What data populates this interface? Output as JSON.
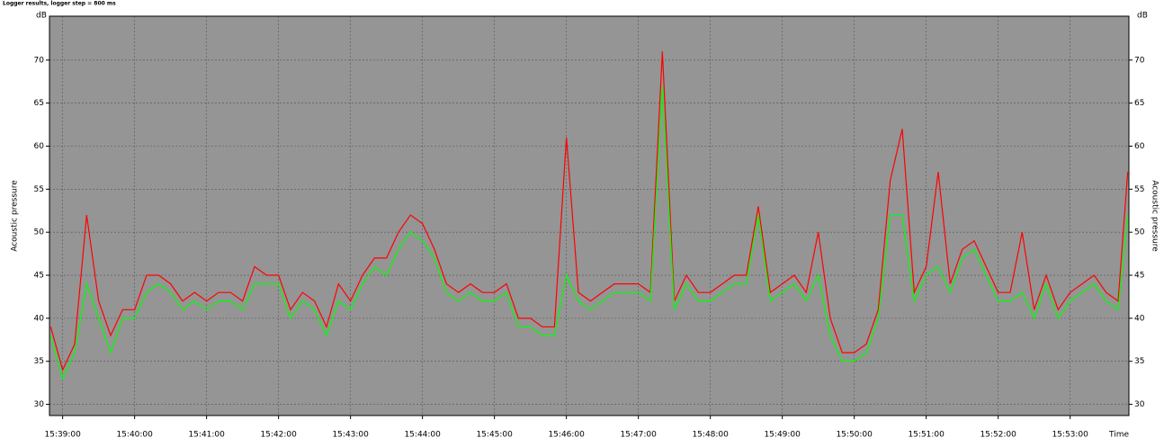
{
  "chart_data": {
    "type": "line",
    "title": "Logger results, logger step = 800 ms",
    "y_label": "Acoustic pressure",
    "y_unit": "dB",
    "x_label": "Time",
    "x": [
      "15:38:50",
      "15:39:00",
      "15:39:10",
      "15:39:20",
      "15:39:30",
      "15:39:40",
      "15:39:50",
      "15:40:00",
      "15:40:10",
      "15:40:20",
      "15:40:30",
      "15:40:40",
      "15:40:50",
      "15:41:00",
      "15:41:10",
      "15:41:20",
      "15:41:30",
      "15:41:40",
      "15:41:50",
      "15:42:00",
      "15:42:10",
      "15:42:20",
      "15:42:30",
      "15:42:40",
      "15:42:50",
      "15:43:00",
      "15:43:10",
      "15:43:20",
      "15:43:30",
      "15:43:40",
      "15:43:50",
      "15:44:00",
      "15:44:10",
      "15:44:20",
      "15:44:30",
      "15:44:40",
      "15:44:50",
      "15:45:00",
      "15:45:10",
      "15:45:20",
      "15:45:30",
      "15:45:40",
      "15:45:50",
      "15:46:00",
      "15:46:10",
      "15:46:20",
      "15:46:30",
      "15:46:40",
      "15:46:50",
      "15:47:00",
      "15:47:10",
      "15:47:20",
      "15:47:30",
      "15:47:40",
      "15:47:50",
      "15:48:00",
      "15:48:10",
      "15:48:20",
      "15:48:30",
      "15:48:40",
      "15:48:50",
      "15:49:00",
      "15:49:10",
      "15:49:20",
      "15:49:30",
      "15:49:40",
      "15:49:50",
      "15:50:00",
      "15:50:10",
      "15:50:20",
      "15:50:30",
      "15:50:40",
      "15:50:50",
      "15:51:00",
      "15:51:10",
      "15:51:20",
      "15:51:30",
      "15:51:40",
      "15:51:50",
      "15:52:00",
      "15:52:10",
      "15:52:20",
      "15:52:30",
      "15:52:40",
      "15:52:50",
      "15:53:00",
      "15:53:10",
      "15:53:20",
      "15:53:30",
      "15:53:40",
      "15:53:48"
    ],
    "series": [
      {
        "color": "#ff0000",
        "values": [
          39,
          34,
          37,
          52,
          42,
          38,
          41,
          41,
          45,
          45,
          44,
          42,
          43,
          42,
          43,
          43,
          42,
          46,
          45,
          45,
          41,
          43,
          42,
          39,
          44,
          42,
          45,
          47,
          47,
          50,
          52,
          51,
          48,
          44,
          43,
          44,
          43,
          43,
          44,
          40,
          40,
          39,
          39,
          61,
          43,
          42,
          43,
          44,
          44,
          44,
          43,
          71,
          42,
          45,
          43,
          43,
          44,
          45,
          45,
          53,
          43,
          44,
          45,
          43,
          50,
          40,
          36,
          36,
          37,
          41,
          56,
          62,
          43,
          46,
          57,
          44,
          48,
          49,
          46,
          43,
          43,
          50,
          41,
          45,
          41,
          43,
          44,
          45,
          43,
          42,
          57
        ]
      },
      {
        "color": "#00ff00",
        "values": [
          38,
          33,
          36,
          44,
          40,
          36,
          40,
          40,
          43,
          44,
          43,
          41,
          42,
          41,
          42,
          42,
          41,
          44,
          44,
          44,
          40,
          42,
          41,
          38,
          42,
          41,
          44,
          46,
          45,
          48,
          50,
          49,
          47,
          43,
          42,
          43,
          42,
          42,
          43,
          39,
          39,
          38,
          38,
          45,
          42,
          41,
          42,
          43,
          43,
          43,
          42,
          67,
          41,
          44,
          42,
          42,
          43,
          44,
          44,
          52,
          42,
          43,
          44,
          42,
          45,
          38,
          35,
          35,
          36,
          40,
          52,
          52,
          42,
          45,
          46,
          43,
          47,
          48,
          45,
          42,
          42,
          43,
          40,
          44,
          40,
          42,
          43,
          44,
          42,
          41,
          52
        ]
      }
    ],
    "xlim": [
      "15:38:49",
      "15:53:49"
    ],
    "xticks": [
      "15:39:00",
      "15:40:00",
      "15:41:00",
      "15:42:00",
      "15:43:00",
      "15:44:00",
      "15:45:00",
      "15:46:00",
      "15:47:00",
      "15:48:00",
      "15:49:00",
      "15:50:00",
      "15:51:00",
      "15:52:00",
      "15:53:00"
    ],
    "ylim": [
      28.7,
      75.1
    ],
    "yticks": [
      30,
      35,
      40,
      45,
      50,
      55,
      60,
      65,
      70
    ],
    "grid": true
  }
}
